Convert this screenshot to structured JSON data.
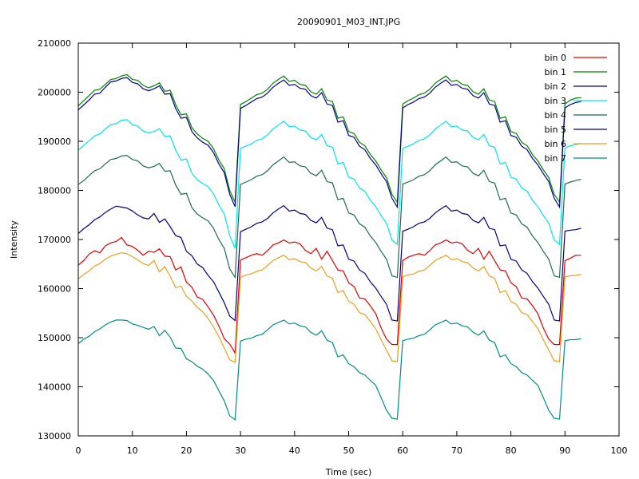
{
  "chart_data": {
    "type": "line",
    "title": "20090901_M03_INT.JPG",
    "xlabel": "Time (sec)",
    "ylabel": "Intensity",
    "xlim": [
      0,
      100
    ],
    "ylim": [
      130000,
      210000
    ],
    "xticks": [
      0,
      10,
      20,
      30,
      40,
      50,
      60,
      70,
      80,
      90,
      100
    ],
    "yticks": [
      130000,
      140000,
      150000,
      160000,
      170000,
      180000,
      190000,
      200000,
      210000
    ],
    "legend_position": "top-right",
    "x": [
      0,
      1,
      2,
      3,
      4,
      5,
      6,
      7,
      8,
      9,
      10,
      11,
      12,
      13,
      14,
      15,
      16,
      17,
      18,
      19,
      20,
      21,
      22,
      23,
      24,
      25,
      26,
      27,
      28,
      29,
      30,
      31,
      32,
      33,
      34,
      35,
      36,
      37,
      38,
      39,
      40,
      41,
      42,
      43,
      44,
      45,
      46,
      47,
      48,
      49,
      50,
      51,
      52,
      53,
      54,
      55,
      56,
      57,
      58,
      59,
      60,
      61,
      62,
      63,
      64,
      65,
      66,
      67,
      68,
      69,
      70,
      71,
      72,
      73,
      74,
      75,
      76,
      77,
      78,
      79,
      80,
      81,
      82,
      83,
      84,
      85,
      86,
      87,
      88,
      89,
      90,
      91,
      92,
      93
    ],
    "series": [
      {
        "name": "bin 0",
        "color": "#e00000",
        "values": [
          164800,
          165700,
          167000,
          167700,
          167300,
          168700,
          169300,
          169600,
          170400,
          168900,
          168600,
          167800,
          166800,
          167600,
          167400,
          168100,
          166600,
          166500,
          163800,
          164400,
          161300,
          160300,
          158300,
          157800,
          156300,
          154600,
          152400,
          149800,
          148700,
          146900,
          165800,
          166300,
          166800,
          167100,
          166800,
          167700,
          168900,
          169300,
          169900,
          169300,
          169500,
          169100,
          167800,
          167100,
          168200,
          166000,
          167600,
          165700,
          163800,
          163600,
          161200,
          160400,
          158100,
          157900,
          156500,
          154900,
          152000,
          149700,
          148600,
          148600,
          165700,
          166400,
          166800,
          167100,
          166800,
          167700,
          168900,
          169300,
          169900,
          169300,
          169500,
          169100,
          167800,
          167100,
          168200,
          166000,
          167600,
          165700,
          163800,
          163600,
          161200,
          160400,
          158100,
          157900,
          156500,
          154900,
          152000,
          149700,
          148600,
          148600,
          165700,
          166200,
          166800,
          166800
        ]
      },
      {
        "name": "bin 1",
        "color": "#008000",
        "values": [
          197200,
          198300,
          199300,
          200400,
          200600,
          201600,
          202600,
          202800,
          203300,
          203600,
          202600,
          202400,
          201400,
          200900,
          201300,
          201900,
          200200,
          200400,
          197500,
          195400,
          195600,
          192800,
          191500,
          190600,
          190000,
          188500,
          186200,
          184400,
          180000,
          177600,
          197500,
          198100,
          198800,
          199500,
          199800,
          200600,
          201800,
          202600,
          203300,
          202200,
          202400,
          201600,
          201400,
          200100,
          199600,
          200700,
          198400,
          198100,
          194700,
          195000,
          192000,
          191600,
          189800,
          189100,
          187300,
          186000,
          184200,
          182600,
          179200,
          177600,
          197600,
          198300,
          198800,
          199500,
          199800,
          200600,
          201800,
          202600,
          203300,
          202200,
          202400,
          201600,
          201400,
          200100,
          199600,
          200700,
          198400,
          198100,
          194700,
          195000,
          192000,
          191600,
          189800,
          189100,
          187300,
          186000,
          184200,
          182600,
          179200,
          177600,
          197600,
          198400,
          198800,
          198900
        ]
      },
      {
        "name": "bin 2",
        "color": "#00008b",
        "values": [
          196400,
          197400,
          198400,
          199600,
          199800,
          201000,
          202100,
          202300,
          202800,
          203000,
          202000,
          201700,
          200700,
          200300,
          200700,
          201300,
          199600,
          199700,
          196700,
          194700,
          194900,
          192000,
          190700,
          189800,
          189200,
          187700,
          185400,
          183600,
          179200,
          176700,
          196700,
          197300,
          198000,
          198700,
          199000,
          199800,
          201000,
          201800,
          202500,
          201400,
          201600,
          200800,
          200600,
          199300,
          198800,
          199900,
          197600,
          197300,
          193900,
          194200,
          191200,
          190800,
          189000,
          188300,
          186500,
          185200,
          183400,
          181800,
          178400,
          176600,
          196800,
          197500,
          198000,
          198700,
          199000,
          199800,
          201000,
          201800,
          202500,
          201400,
          201600,
          200800,
          200600,
          199300,
          198800,
          199900,
          197600,
          197300,
          193900,
          194200,
          191200,
          190800,
          189000,
          188300,
          186500,
          185200,
          183400,
          181800,
          178400,
          176600,
          196800,
          197500,
          197900,
          198100
        ]
      },
      {
        "name": "bin 3",
        "color": "#00e5ee",
        "values": [
          188200,
          189200,
          190100,
          191100,
          191500,
          192500,
          193400,
          193600,
          194300,
          194400,
          193400,
          193100,
          192100,
          191700,
          192000,
          192600,
          191000,
          191100,
          188200,
          186200,
          186400,
          183500,
          182200,
          181400,
          180800,
          179300,
          177000,
          175200,
          170800,
          168200,
          188600,
          189000,
          189500,
          190200,
          190500,
          191300,
          192500,
          193300,
          194100,
          193000,
          193100,
          192300,
          192100,
          190800,
          190300,
          191400,
          189100,
          188800,
          185400,
          185700,
          182700,
          182300,
          180500,
          179800,
          178000,
          176700,
          174900,
          173300,
          169900,
          169000,
          188600,
          189000,
          189500,
          190200,
          190500,
          191300,
          192500,
          193300,
          194100,
          193000,
          193100,
          192300,
          192100,
          190800,
          190300,
          191400,
          189100,
          188800,
          185400,
          185700,
          182700,
          182300,
          180500,
          179800,
          178000,
          176700,
          174900,
          173300,
          169900,
          169000,
          188600,
          189100,
          189300,
          189600
        ]
      },
      {
        "name": "bin 4",
        "color": "#1e6b4a",
        "values": [
          181200,
          182000,
          183000,
          184000,
          184400,
          185400,
          186300,
          186500,
          187000,
          187100,
          186300,
          186000,
          185000,
          184600,
          184900,
          185500,
          183900,
          184000,
          181100,
          179200,
          179400,
          176500,
          175200,
          174400,
          173800,
          172300,
          170000,
          168200,
          164000,
          162300,
          181200,
          181700,
          182200,
          182900,
          183200,
          184000,
          185200,
          186000,
          186800,
          185700,
          185800,
          185000,
          184800,
          183500,
          183000,
          184100,
          181800,
          181500,
          178100,
          178400,
          175400,
          175000,
          173200,
          172500,
          170700,
          169400,
          167600,
          166000,
          162600,
          162300,
          181300,
          181700,
          182200,
          182900,
          183200,
          184000,
          185200,
          186000,
          186800,
          185700,
          185800,
          185000,
          184800,
          183500,
          183000,
          184100,
          181800,
          181500,
          178100,
          178400,
          175400,
          175000,
          173200,
          172500,
          170700,
          169400,
          167600,
          166000,
          162600,
          162300,
          181300,
          181700,
          182000,
          182300
        ]
      },
      {
        "name": "bin 5",
        "color": "#000080",
        "values": [
          171200,
          172200,
          173000,
          174000,
          174600,
          175500,
          176200,
          176800,
          176600,
          176400,
          175800,
          175000,
          174400,
          174200,
          175300,
          173500,
          174200,
          172600,
          170800,
          170400,
          167600,
          166700,
          165000,
          164300,
          162700,
          161400,
          159300,
          157100,
          154400,
          153500,
          171600,
          172100,
          172600,
          173300,
          173600,
          174300,
          175400,
          176200,
          176900,
          175800,
          176000,
          175300,
          175100,
          173900,
          173400,
          174500,
          172300,
          172000,
          168700,
          168900,
          166000,
          165600,
          163800,
          163100,
          161400,
          160100,
          158400,
          156800,
          153600,
          153400,
          171700,
          172100,
          172600,
          173300,
          173600,
          174300,
          175400,
          176200,
          176900,
          175800,
          176000,
          175300,
          175100,
          173900,
          173400,
          174500,
          172300,
          172000,
          168700,
          168900,
          166000,
          165600,
          163800,
          163100,
          161400,
          160100,
          158400,
          156800,
          153600,
          153400,
          171700,
          171900,
          172000,
          172300
        ]
      },
      {
        "name": "bin 6",
        "color": "#e6a020",
        "values": [
          162000,
          162900,
          163600,
          164600,
          165100,
          166000,
          166600,
          167000,
          167300,
          167100,
          166500,
          165800,
          165100,
          164700,
          165700,
          163400,
          164500,
          162500,
          160200,
          160500,
          158400,
          157500,
          156200,
          155300,
          153900,
          152200,
          150200,
          147900,
          145500,
          145000,
          162300,
          162800,
          163000,
          163500,
          163800,
          164700,
          165700,
          166300,
          166800,
          165900,
          166100,
          165500,
          165300,
          164200,
          163600,
          164500,
          162600,
          162100,
          159200,
          159600,
          157400,
          156800,
          155100,
          154700,
          153300,
          151800,
          149600,
          147500,
          145300,
          145100,
          162400,
          162800,
          163000,
          163500,
          163800,
          164700,
          165700,
          166300,
          166800,
          165900,
          166100,
          165500,
          165300,
          164200,
          163600,
          164500,
          162600,
          162100,
          159200,
          159600,
          157400,
          156800,
          155100,
          154700,
          153300,
          151800,
          149600,
          147500,
          145300,
          145100,
          162400,
          162600,
          162700,
          162900
        ]
      },
      {
        "name": "bin 7",
        "color": "#008b8b",
        "values": [
          148800,
          149700,
          150300,
          151200,
          151800,
          152600,
          153200,
          153600,
          153600,
          153500,
          152800,
          152500,
          152100,
          151700,
          152300,
          150400,
          151500,
          150100,
          147900,
          147800,
          145700,
          145100,
          144200,
          143600,
          142600,
          141300,
          139200,
          137100,
          134100,
          133300,
          149300,
          149700,
          149900,
          150400,
          150700,
          151600,
          152600,
          153100,
          153600,
          152800,
          153000,
          152400,
          152200,
          151100,
          150500,
          151400,
          149500,
          149000,
          146100,
          146500,
          144700,
          144100,
          142900,
          142400,
          141300,
          140300,
          137800,
          135200,
          133600,
          133400,
          149400,
          149700,
          149900,
          150400,
          150700,
          151600,
          152600,
          153100,
          153600,
          152800,
          153000,
          152400,
          152200,
          151100,
          150500,
          151400,
          149500,
          149000,
          146100,
          146500,
          144700,
          144100,
          142900,
          142400,
          141300,
          140300,
          137800,
          135200,
          133600,
          133400,
          149400,
          149600,
          149600,
          149800
        ]
      }
    ]
  }
}
